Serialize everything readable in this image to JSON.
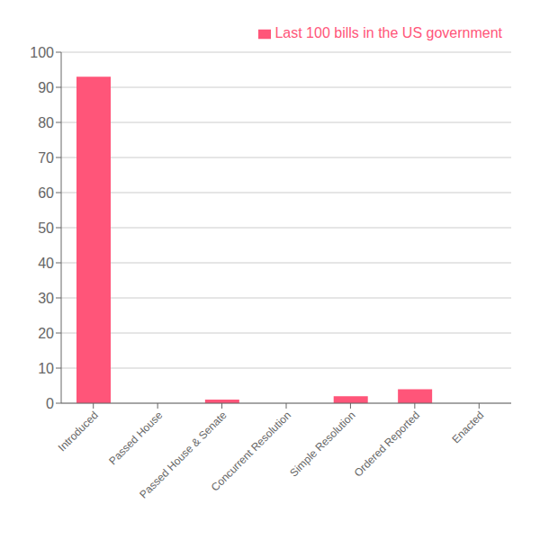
{
  "chart_data": {
    "type": "bar",
    "categories": [
      "Introduced",
      "Passed House",
      "Passed House & Senate",
      "Concurrent Resolution",
      "Simple Resolution",
      "Ordered Reported",
      "Enacted"
    ],
    "series": [
      {
        "name": "Last 100 bills in the US government",
        "color": "#FF5579",
        "values": [
          93,
          0,
          1,
          0,
          2,
          4,
          0
        ]
      }
    ],
    "ylim": [
      0,
      100
    ],
    "yticks": [
      0,
      10,
      20,
      30,
      40,
      50,
      60,
      70,
      80,
      90,
      100
    ],
    "grid": true,
    "legend": "upper-right"
  }
}
